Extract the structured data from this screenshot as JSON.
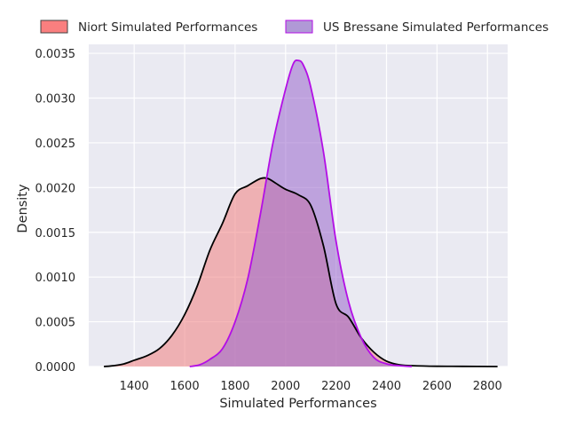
{
  "chart_data": {
    "type": "area",
    "title": "",
    "xlabel": "Simulated Performances",
    "ylabel": "Density",
    "xlim": [
      1220,
      2880
    ],
    "ylim": [
      0,
      0.0036
    ],
    "xticks": [
      1400,
      1600,
      1800,
      2000,
      2200,
      2400,
      2600,
      2800
    ],
    "xtick_labels": [
      "1400",
      "1600",
      "1800",
      "2000",
      "2200",
      "2400",
      "2600",
      "2800"
    ],
    "yticks": [
      0,
      0.0005,
      0.001,
      0.0015,
      0.002,
      0.0025,
      0.003,
      0.0035
    ],
    "ytick_labels": [
      "0.0000",
      "0.0005",
      "0.0010",
      "0.0015",
      "0.0020",
      "0.0025",
      "0.0030",
      "0.0035"
    ],
    "grid": true,
    "legend_position": "top",
    "series": [
      {
        "name": "Niort Simulated Performances",
        "fill_color": "#f08080",
        "legend_color": "#fa7f7f",
        "line_color": "#000000",
        "x": [
          1280,
          1320,
          1360,
          1400,
          1450,
          1500,
          1550,
          1600,
          1650,
          1700,
          1750,
          1800,
          1850,
          1900,
          1930,
          1960,
          2000,
          2050,
          2100,
          2150,
          2200,
          2250,
          2300,
          2350,
          2400,
          2450,
          2500,
          2600,
          2700,
          2840
        ],
        "y": [
          0,
          1e-05,
          3e-05,
          7e-05,
          0.00012,
          0.0002,
          0.00035,
          0.00058,
          0.0009,
          0.0013,
          0.0016,
          0.00193,
          0.00202,
          0.0021,
          0.0021,
          0.00205,
          0.00198,
          0.00192,
          0.0018,
          0.00135,
          0.0007,
          0.00055,
          0.00032,
          0.00016,
          6e-05,
          2e-05,
          1e-05,
          3e-06,
          2e-06,
          0
        ]
      },
      {
        "name": "US Bressane Simulated Performances",
        "fill_color": "#9966cc",
        "legend_color": "#b099d6",
        "line_color": "#b30ee6",
        "x": [
          1620,
          1660,
          1700,
          1750,
          1800,
          1850,
          1900,
          1950,
          2000,
          2030,
          2050,
          2070,
          2100,
          2150,
          2200,
          2250,
          2300,
          2350,
          2400,
          2450,
          2500
        ],
        "y": [
          0,
          2e-05,
          8e-05,
          0.0002,
          0.0005,
          0.00098,
          0.0017,
          0.0025,
          0.0031,
          0.00338,
          0.00342,
          0.00337,
          0.00312,
          0.0024,
          0.0014,
          0.00072,
          0.00032,
          0.0001,
          3e-05,
          1e-05,
          0
        ]
      }
    ]
  }
}
